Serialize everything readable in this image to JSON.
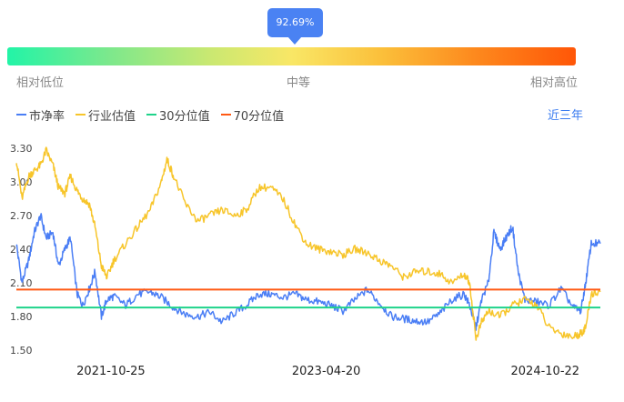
{
  "indicator": {
    "tooltip_value": "92.69%",
    "labels": {
      "low": "相对低位",
      "mid": "中等",
      "high": "相对高位"
    }
  },
  "legend": {
    "pb": "市净率",
    "industry": "行业估值",
    "p30": "30分位值",
    "p70": "70分位值"
  },
  "range_button": "近三年",
  "colors": {
    "pb": "#4a7ef5",
    "industry": "#f7c52a",
    "p30": "#1fd38a",
    "p70": "#ff5a14"
  },
  "chart_data": {
    "type": "line",
    "ylim": [
      1.5,
      3.3
    ],
    "y_ticks": [
      "1.50",
      "1.80",
      "2.10",
      "2.40",
      "2.70",
      "3.00",
      "3.30"
    ],
    "x_range": [
      "2021-03-01",
      "2025-03-10"
    ],
    "x_ticks": [
      "2021-10-25",
      "2023-04-20",
      "2024-10-22"
    ],
    "grid": false,
    "legend_position": "top-left",
    "reference_lines": [
      {
        "name": "30分位值",
        "value": 1.88
      },
      {
        "name": "70分位值",
        "value": 2.04
      }
    ],
    "series": [
      {
        "name": "市净率",
        "points": [
          [
            "2021-03-01",
            2.45
          ],
          [
            "2021-03-15",
            2.1
          ],
          [
            "2021-04-01",
            2.3
          ],
          [
            "2021-04-15",
            2.55
          ],
          [
            "2021-05-01",
            2.7
          ],
          [
            "2021-05-15",
            2.5
          ],
          [
            "2021-06-01",
            2.55
          ],
          [
            "2021-06-15",
            2.25
          ],
          [
            "2021-07-01",
            2.4
          ],
          [
            "2021-07-15",
            2.5
          ],
          [
            "2021-08-01",
            2.0
          ],
          [
            "2021-08-15",
            1.9
          ],
          [
            "2021-09-01",
            2.05
          ],
          [
            "2021-09-15",
            2.2
          ],
          [
            "2021-10-01",
            1.8
          ],
          [
            "2021-10-15",
            1.95
          ],
          [
            "2021-11-01",
            1.98
          ],
          [
            "2021-12-01",
            1.9
          ],
          [
            "2022-01-01",
            2.0
          ],
          [
            "2022-02-01",
            2.02
          ],
          [
            "2022-03-01",
            1.97
          ],
          [
            "2022-04-01",
            1.88
          ],
          [
            "2022-05-01",
            1.82
          ],
          [
            "2022-06-01",
            1.8
          ],
          [
            "2022-07-01",
            1.84
          ],
          [
            "2022-08-01",
            1.75
          ],
          [
            "2022-09-01",
            1.83
          ],
          [
            "2022-10-01",
            1.9
          ],
          [
            "2022-11-01",
            2.0
          ],
          [
            "2022-12-01",
            2.0
          ],
          [
            "2023-01-01",
            1.97
          ],
          [
            "2023-02-01",
            2.0
          ],
          [
            "2023-03-01",
            1.95
          ],
          [
            "2023-04-01",
            1.93
          ],
          [
            "2023-05-01",
            1.9
          ],
          [
            "2023-06-01",
            1.85
          ],
          [
            "2023-07-01",
            1.95
          ],
          [
            "2023-08-01",
            2.04
          ],
          [
            "2023-09-01",
            1.92
          ],
          [
            "2023-10-01",
            1.8
          ],
          [
            "2023-11-01",
            1.78
          ],
          [
            "2023-12-01",
            1.76
          ],
          [
            "2024-01-01",
            1.75
          ],
          [
            "2024-02-01",
            1.83
          ],
          [
            "2024-03-01",
            1.95
          ],
          [
            "2024-04-01",
            2.0
          ],
          [
            "2024-04-15",
            1.9
          ],
          [
            "2024-05-01",
            1.7
          ],
          [
            "2024-05-15",
            1.95
          ],
          [
            "2024-06-01",
            2.1
          ],
          [
            "2024-06-15",
            2.55
          ],
          [
            "2024-07-01",
            2.4
          ],
          [
            "2024-07-15",
            2.5
          ],
          [
            "2024-08-01",
            2.6
          ],
          [
            "2024-08-15",
            2.2
          ],
          [
            "2024-09-01",
            1.95
          ],
          [
            "2024-10-01",
            1.93
          ],
          [
            "2024-11-01",
            1.9
          ],
          [
            "2024-12-01",
            2.05
          ],
          [
            "2025-01-01",
            1.88
          ],
          [
            "2025-01-20",
            1.85
          ],
          [
            "2025-02-01",
            2.1
          ],
          [
            "2025-02-15",
            2.45
          ],
          [
            "2025-03-10",
            2.45
          ]
        ]
      },
      {
        "name": "行业估值",
        "points": [
          [
            "2021-03-01",
            3.2
          ],
          [
            "2021-03-15",
            2.85
          ],
          [
            "2021-04-01",
            3.05
          ],
          [
            "2021-04-15",
            3.1
          ],
          [
            "2021-05-01",
            3.15
          ],
          [
            "2021-05-15",
            3.28
          ],
          [
            "2021-06-01",
            3.15
          ],
          [
            "2021-06-15",
            2.95
          ],
          [
            "2021-07-01",
            2.9
          ],
          [
            "2021-07-15",
            3.05
          ],
          [
            "2021-08-01",
            2.92
          ],
          [
            "2021-08-15",
            2.85
          ],
          [
            "2021-09-01",
            2.8
          ],
          [
            "2021-09-15",
            2.6
          ],
          [
            "2021-10-01",
            2.25
          ],
          [
            "2021-10-15",
            2.15
          ],
          [
            "2021-11-01",
            2.3
          ],
          [
            "2021-12-01",
            2.45
          ],
          [
            "2022-01-01",
            2.6
          ],
          [
            "2022-02-01",
            2.75
          ],
          [
            "2022-03-01",
            3.0
          ],
          [
            "2022-03-15",
            3.2
          ],
          [
            "2022-04-01",
            3.05
          ],
          [
            "2022-05-01",
            2.8
          ],
          [
            "2022-06-01",
            2.65
          ],
          [
            "2022-07-01",
            2.7
          ],
          [
            "2022-08-01",
            2.75
          ],
          [
            "2022-09-01",
            2.7
          ],
          [
            "2022-10-01",
            2.75
          ],
          [
            "2022-11-01",
            2.95
          ],
          [
            "2022-12-01",
            2.95
          ],
          [
            "2023-01-01",
            2.85
          ],
          [
            "2023-02-01",
            2.62
          ],
          [
            "2023-03-01",
            2.45
          ],
          [
            "2023-04-01",
            2.4
          ],
          [
            "2023-05-01",
            2.38
          ],
          [
            "2023-06-01",
            2.35
          ],
          [
            "2023-07-01",
            2.4
          ],
          [
            "2023-08-01",
            2.37
          ],
          [
            "2023-09-01",
            2.3
          ],
          [
            "2023-10-01",
            2.25
          ],
          [
            "2023-11-01",
            2.15
          ],
          [
            "2023-12-01",
            2.2
          ],
          [
            "2024-01-01",
            2.2
          ],
          [
            "2024-02-01",
            2.18
          ],
          [
            "2024-03-01",
            2.1
          ],
          [
            "2024-04-01",
            2.18
          ],
          [
            "2024-04-15",
            2.1
          ],
          [
            "2024-05-01",
            1.6
          ],
          [
            "2024-05-15",
            1.75
          ],
          [
            "2024-06-01",
            1.85
          ],
          [
            "2024-07-01",
            1.8
          ],
          [
            "2024-08-01",
            1.9
          ],
          [
            "2024-09-01",
            1.95
          ],
          [
            "2024-10-01",
            1.9
          ],
          [
            "2024-11-01",
            1.7
          ],
          [
            "2024-12-01",
            1.65
          ],
          [
            "2025-01-01",
            1.62
          ],
          [
            "2025-01-20",
            1.65
          ],
          [
            "2025-02-01",
            1.7
          ],
          [
            "2025-02-15",
            2.0
          ],
          [
            "2025-03-10",
            2.02
          ]
        ]
      }
    ]
  }
}
